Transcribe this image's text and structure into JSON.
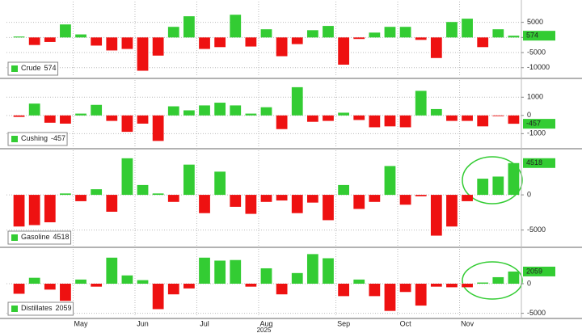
{
  "chart_data": [
    {
      "type": "bar",
      "series": [
        {
          "name": "Crude",
          "values": [
            300,
            -2500,
            -1500,
            4300,
            1000,
            -2700,
            -4300,
            -3800,
            -11000,
            -6000,
            3500,
            7000,
            -3800,
            -3200,
            7500,
            -3000,
            2700,
            -6200,
            -2200,
            2400,
            3800,
            -9000,
            -500,
            1600,
            3500,
            3500,
            -800,
            -6800,
            5100,
            6200,
            -3200,
            2700,
            574
          ]
        }
      ],
      "pos_color": "#33cc33",
      "neg_color": "#ee1111",
      "ylim": [
        -13000,
        9700
      ],
      "yticks": [
        5000,
        0,
        -5000,
        -10000
      ],
      "grid": true
    },
    {
      "type": "bar",
      "series": [
        {
          "name": "Cushing",
          "values": [
            -80,
            650,
            -400,
            -450,
            100,
            580,
            -300,
            -900,
            -450,
            -1400,
            500,
            280,
            550,
            700,
            550,
            100,
            450,
            -750,
            1550,
            -350,
            -300,
            150,
            -250,
            -650,
            -600,
            -650,
            1350,
            350,
            -300,
            -300,
            -600,
            -40,
            -457
          ]
        }
      ],
      "pos_color": "#33cc33",
      "neg_color": "#ee1111",
      "ylim": [
        -1650,
        1900
      ],
      "yticks": [
        1000,
        0,
        -1000
      ],
      "grid": true
    },
    {
      "type": "bar",
      "series": [
        {
          "name": "Gasoline",
          "values": [
            -4500,
            -4300,
            -3900,
            200,
            -900,
            800,
            -2400,
            5200,
            1400,
            200,
            -1000,
            4300,
            -2600,
            3300,
            -1700,
            -2700,
            -1000,
            -800,
            -2600,
            -1100,
            -3600,
            1400,
            -2000,
            -1000,
            4100,
            -1400,
            -200,
            -5800,
            -4500,
            -900,
            2300,
            2600,
            4518
          ]
        }
      ],
      "pos_color": "#33cc33",
      "neg_color": "#ee1111",
      "ylim": [
        -7000,
        6100
      ],
      "yticks": [
        0,
        -5000
      ],
      "grid": true
    },
    {
      "type": "bar",
      "series": [
        {
          "name": "Distillates",
          "values": [
            -1700,
            1000,
            -1000,
            -2900,
            700,
            -500,
            4400,
            1400,
            600,
            -4300,
            -1800,
            -800,
            4400,
            3900,
            4000,
            -500,
            2600,
            -1800,
            1800,
            5000,
            4300,
            -2100,
            700,
            -2100,
            -4600,
            -1400,
            -3700,
            -500,
            -600,
            -600,
            200,
            1100,
            2059
          ]
        }
      ],
      "pos_color": "#33cc33",
      "neg_color": "#ee1111",
      "ylim": [
        -5600,
        5600
      ],
      "yticks": [
        0,
        -5000
      ],
      "grid": true,
      "categories": [
        null,
        null,
        null,
        null,
        "May",
        null,
        null,
        null,
        "Jun",
        null,
        null,
        null,
        "Jul",
        null,
        null,
        null,
        "Aug",
        null,
        null,
        null,
        null,
        "Sep",
        null,
        null,
        null,
        "Oct",
        null,
        null,
        null,
        "Nov",
        null,
        null,
        null
      ],
      "xlabel": "2025"
    }
  ]
}
